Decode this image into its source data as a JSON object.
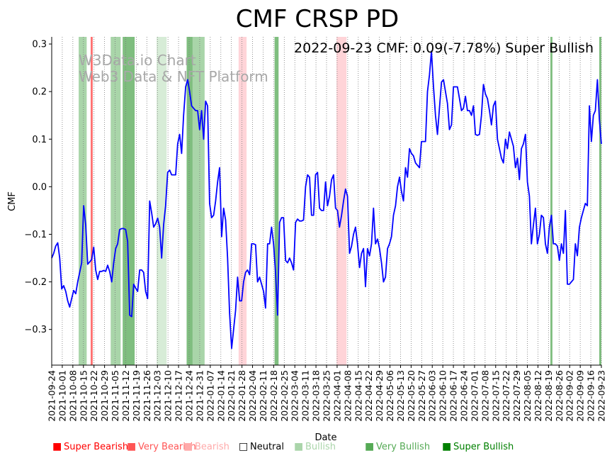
{
  "chart_data": {
    "type": "line",
    "title": "CMF CRSP PD",
    "annotation": "2022-09-23 CMF: 0.09(-7.78%) Super Bullish",
    "watermark": [
      "W3Data.io Chart",
      "Web3 Data & NFT Platform"
    ],
    "xlabel": "Date",
    "ylabel": "CMF",
    "ylim": [
      -0.375,
      0.315
    ],
    "y_ticks": [
      -0.3,
      -0.2,
      -0.1,
      0.0,
      0.1,
      0.2,
      0.3
    ],
    "y_tick_labels": [
      "−0.3",
      "−0.2",
      "−0.1",
      "0.0",
      "0.1",
      "0.2",
      "0.3"
    ],
    "x_start": "2021-09-24",
    "x_end": "2022-09-23",
    "x_tick_labels": [
      "2021-09-24",
      "2021-10-01",
      "2021-10-08",
      "2021-10-15",
      "2021-10-22",
      "2021-10-29",
      "2021-11-05",
      "2021-11-12",
      "2021-11-19",
      "2021-11-26",
      "2021-12-03",
      "2021-12-10",
      "2021-12-17",
      "2021-12-24",
      "2021-12-31",
      "2022-01-07",
      "2022-01-14",
      "2022-01-21",
      "2022-01-28",
      "2022-02-04",
      "2022-02-11",
      "2022-02-18",
      "2022-02-25",
      "2022-03-04",
      "2022-03-11",
      "2022-03-18",
      "2022-03-25",
      "2022-04-01",
      "2022-04-08",
      "2022-04-15",
      "2022-04-22",
      "2022-04-29",
      "2022-05-06",
      "2022-05-13",
      "2022-05-20",
      "2022-05-27",
      "2022-06-03",
      "2022-06-10",
      "2022-06-17",
      "2022-06-24",
      "2022-07-01",
      "2022-07-08",
      "2022-07-15",
      "2022-07-22",
      "2022-07-29",
      "2022-08-05",
      "2022-08-12",
      "2022-08-19",
      "2022-08-26",
      "2022-09-02",
      "2022-09-09",
      "2022-09-16",
      "2022-09-23"
    ],
    "series": [
      {
        "name": "CMF",
        "color": "#0000ff",
        "points": [
          [
            0,
            -0.15
          ],
          [
            1,
            -0.14
          ],
          [
            2,
            -0.125
          ],
          [
            3,
            -0.118
          ],
          [
            4,
            -0.15
          ],
          [
            5,
            -0.215
          ],
          [
            6,
            -0.208
          ],
          [
            7,
            -0.22
          ],
          [
            8,
            -0.24
          ],
          [
            9,
            -0.253
          ],
          [
            10,
            -0.235
          ],
          [
            11,
            -0.218
          ],
          [
            12,
            -0.225
          ],
          [
            13,
            -0.2
          ],
          [
            14,
            -0.18
          ],
          [
            15,
            -0.16
          ],
          [
            16,
            -0.04
          ],
          [
            17,
            -0.08
          ],
          [
            18,
            -0.163
          ],
          [
            19,
            -0.158
          ],
          [
            20,
            -0.153
          ],
          [
            21,
            -0.127
          ],
          [
            22,
            -0.175
          ],
          [
            23,
            -0.195
          ],
          [
            24,
            -0.178
          ],
          [
            25,
            -0.178
          ],
          [
            26,
            -0.176
          ],
          [
            27,
            -0.178
          ],
          [
            28,
            -0.165
          ],
          [
            29,
            -0.178
          ],
          [
            30,
            -0.2
          ],
          [
            31,
            -0.16
          ],
          [
            32,
            -0.13
          ],
          [
            33,
            -0.12
          ],
          [
            34,
            -0.09
          ],
          [
            35,
            -0.088
          ],
          [
            36,
            -0.088
          ],
          [
            37,
            -0.09
          ],
          [
            38,
            -0.115
          ],
          [
            39,
            -0.27
          ],
          [
            40,
            -0.273
          ],
          [
            41,
            -0.205
          ],
          [
            42,
            -0.213
          ],
          [
            43,
            -0.22
          ],
          [
            44,
            -0.175
          ],
          [
            45,
            -0.175
          ],
          [
            46,
            -0.18
          ],
          [
            47,
            -0.22
          ],
          [
            48,
            -0.235
          ],
          [
            49,
            -0.03
          ],
          [
            50,
            -0.055
          ],
          [
            51,
            -0.085
          ],
          [
            52,
            -0.078
          ],
          [
            53,
            -0.066
          ],
          [
            54,
            -0.085
          ],
          [
            55,
            -0.15
          ],
          [
            56,
            -0.08
          ],
          [
            57,
            -0.04
          ],
          [
            58,
            0.03
          ],
          [
            59,
            0.035
          ],
          [
            60,
            0.025
          ],
          [
            61,
            0.025
          ],
          [
            62,
            0.025
          ],
          [
            63,
            0.09
          ],
          [
            64,
            0.11
          ],
          [
            65,
            0.07
          ],
          [
            66,
            0.15
          ],
          [
            67,
            0.21
          ],
          [
            68,
            0.225
          ],
          [
            69,
            0.2
          ],
          [
            70,
            0.17
          ],
          [
            71,
            0.165
          ],
          [
            72,
            0.16
          ],
          [
            73,
            0.16
          ],
          [
            74,
            0.12
          ],
          [
            75,
            0.16
          ],
          [
            76,
            0.1
          ],
          [
            77,
            0.18
          ],
          [
            78,
            0.17
          ],
          [
            79,
            -0.035
          ],
          [
            80,
            -0.065
          ],
          [
            81,
            -0.06
          ],
          [
            82,
            -0.03
          ],
          [
            83,
            0.01
          ],
          [
            84,
            0.04
          ],
          [
            85,
            -0.105
          ],
          [
            86,
            -0.045
          ],
          [
            87,
            -0.07
          ],
          [
            88,
            -0.15
          ],
          [
            89,
            -0.265
          ],
          [
            90,
            -0.34
          ],
          [
            91,
            -0.3
          ],
          [
            92,
            -0.26
          ],
          [
            93,
            -0.19
          ],
          [
            94,
            -0.24
          ],
          [
            95,
            -0.24
          ],
          [
            96,
            -0.2
          ],
          [
            97,
            -0.18
          ],
          [
            98,
            -0.175
          ],
          [
            99,
            -0.185
          ],
          [
            100,
            -0.12
          ],
          [
            101,
            -0.12
          ],
          [
            102,
            -0.122
          ],
          [
            103,
            -0.2
          ],
          [
            104,
            -0.19
          ],
          [
            105,
            -0.205
          ],
          [
            106,
            -0.22
          ],
          [
            107,
            -0.255
          ],
          [
            108,
            -0.12
          ],
          [
            109,
            -0.12
          ],
          [
            110,
            -0.085
          ],
          [
            111,
            -0.12
          ],
          [
            112,
            -0.18
          ],
          [
            113,
            -0.27
          ],
          [
            114,
            -0.075
          ],
          [
            115,
            -0.065
          ],
          [
            116,
            -0.065
          ],
          [
            117,
            -0.155
          ],
          [
            118,
            -0.16
          ],
          [
            119,
            -0.15
          ],
          [
            120,
            -0.16
          ],
          [
            121,
            -0.175
          ],
          [
            122,
            -0.075
          ],
          [
            123,
            -0.068
          ],
          [
            124,
            -0.072
          ],
          [
            125,
            -0.072
          ],
          [
            126,
            -0.07
          ],
          [
            127,
            0.0
          ],
          [
            128,
            0.025
          ],
          [
            129,
            0.02
          ],
          [
            130,
            -0.06
          ],
          [
            131,
            -0.06
          ],
          [
            132,
            0.025
          ],
          [
            133,
            0.03
          ],
          [
            134,
            -0.045
          ],
          [
            135,
            -0.05
          ],
          [
            136,
            -0.05
          ],
          [
            137,
            0.01
          ],
          [
            138,
            -0.04
          ],
          [
            139,
            -0.02
          ],
          [
            140,
            0.015
          ],
          [
            141,
            0.025
          ],
          [
            142,
            -0.045
          ],
          [
            143,
            -0.05
          ],
          [
            144,
            -0.085
          ],
          [
            145,
            -0.06
          ],
          [
            146,
            -0.03
          ],
          [
            147,
            -0.005
          ],
          [
            148,
            -0.02
          ],
          [
            149,
            -0.14
          ],
          [
            150,
            -0.125
          ],
          [
            151,
            -0.1
          ],
          [
            152,
            -0.085
          ],
          [
            153,
            -0.12
          ],
          [
            154,
            -0.17
          ],
          [
            155,
            -0.14
          ],
          [
            156,
            -0.13
          ],
          [
            157,
            -0.21
          ],
          [
            158,
            -0.13
          ],
          [
            159,
            -0.145
          ],
          [
            160,
            -0.12
          ],
          [
            161,
            -0.045
          ],
          [
            162,
            -0.12
          ],
          [
            163,
            -0.11
          ],
          [
            164,
            -0.13
          ],
          [
            165,
            -0.16
          ],
          [
            166,
            -0.2
          ],
          [
            167,
            -0.19
          ],
          [
            168,
            -0.13
          ],
          [
            169,
            -0.12
          ],
          [
            170,
            -0.105
          ],
          [
            171,
            -0.06
          ],
          [
            172,
            -0.04
          ],
          [
            173,
            0.0
          ],
          [
            174,
            0.02
          ],
          [
            175,
            -0.01
          ],
          [
            176,
            -0.03
          ],
          [
            177,
            0.04
          ],
          [
            178,
            0.02
          ],
          [
            179,
            0.08
          ],
          [
            180,
            0.07
          ],
          [
            181,
            0.065
          ],
          [
            182,
            0.05
          ],
          [
            183,
            0.045
          ],
          [
            184,
            0.04
          ],
          [
            185,
            0.095
          ],
          [
            186,
            0.095
          ],
          [
            187,
            0.095
          ],
          [
            188,
            0.2
          ],
          [
            189,
            0.235
          ],
          [
            190,
            0.285
          ],
          [
            191,
            0.21
          ],
          [
            192,
            0.15
          ],
          [
            193,
            0.11
          ],
          [
            194,
            0.165
          ],
          [
            195,
            0.22
          ],
          [
            196,
            0.225
          ],
          [
            197,
            0.2
          ],
          [
            198,
            0.175
          ],
          [
            199,
            0.12
          ],
          [
            200,
            0.13
          ],
          [
            201,
            0.21
          ],
          [
            202,
            0.21
          ],
          [
            203,
            0.21
          ],
          [
            204,
            0.185
          ],
          [
            205,
            0.16
          ],
          [
            206,
            0.165
          ],
          [
            207,
            0.19
          ],
          [
            208,
            0.16
          ],
          [
            209,
            0.16
          ],
          [
            210,
            0.15
          ],
          [
            211,
            0.17
          ],
          [
            212,
            0.11
          ],
          [
            213,
            0.108
          ],
          [
            214,
            0.11
          ],
          [
            215,
            0.15
          ],
          [
            216,
            0.215
          ],
          [
            217,
            0.195
          ],
          [
            218,
            0.185
          ],
          [
            219,
            0.16
          ],
          [
            220,
            0.13
          ],
          [
            221,
            0.17
          ],
          [
            222,
            0.18
          ],
          [
            223,
            0.1
          ],
          [
            224,
            0.08
          ],
          [
            225,
            0.06
          ],
          [
            226,
            0.05
          ],
          [
            227,
            0.1
          ],
          [
            228,
            0.08
          ],
          [
            229,
            0.115
          ],
          [
            230,
            0.1
          ],
          [
            231,
            0.085
          ],
          [
            232,
            0.04
          ],
          [
            233,
            0.06
          ],
          [
            234,
            0.015
          ],
          [
            235,
            0.08
          ],
          [
            236,
            0.09
          ],
          [
            237,
            0.11
          ],
          [
            238,
            0.01
          ],
          [
            239,
            -0.02
          ],
          [
            240,
            -0.12
          ],
          [
            241,
            -0.08
          ],
          [
            242,
            -0.045
          ],
          [
            243,
            -0.12
          ],
          [
            244,
            -0.1
          ],
          [
            245,
            -0.06
          ],
          [
            246,
            -0.065
          ],
          [
            247,
            -0.12
          ],
          [
            248,
            -0.14
          ],
          [
            249,
            -0.085
          ],
          [
            250,
            -0.06
          ],
          [
            251,
            -0.12
          ],
          [
            252,
            -0.12
          ],
          [
            253,
            -0.125
          ],
          [
            254,
            -0.155
          ],
          [
            255,
            -0.12
          ],
          [
            256,
            -0.14
          ],
          [
            257,
            -0.05
          ],
          [
            258,
            -0.205
          ],
          [
            259,
            -0.205
          ],
          [
            260,
            -0.2
          ],
          [
            261,
            -0.195
          ],
          [
            262,
            -0.12
          ],
          [
            263,
            -0.145
          ],
          [
            264,
            -0.085
          ],
          [
            265,
            -0.065
          ],
          [
            266,
            -0.05
          ],
          [
            267,
            -0.035
          ],
          [
            268,
            -0.04
          ],
          [
            269,
            0.17
          ],
          [
            270,
            0.095
          ],
          [
            271,
            0.15
          ],
          [
            272,
            0.16
          ],
          [
            273,
            0.225
          ],
          [
            274,
            0.14
          ],
          [
            275,
            0.09
          ]
        ]
      }
    ],
    "signal_bands": [
      {
        "start": 13.5,
        "end": 17.5,
        "class": "Bullish"
      },
      {
        "start": 19.5,
        "end": 20.5,
        "class": "Very Bearish"
      },
      {
        "start": 29.5,
        "end": 34.5,
        "class": "Bullish"
      },
      {
        "start": 35.5,
        "end": 41.5,
        "class": "Very Bullish"
      },
      {
        "start": 52.5,
        "end": 57.5,
        "class": "Neutral-Bullish"
      },
      {
        "start": 67.5,
        "end": 70.5,
        "class": "Very Bullish"
      },
      {
        "start": 70.5,
        "end": 76.5,
        "class": "Bullish"
      },
      {
        "start": 93.5,
        "end": 97.5,
        "class": "Bearish"
      },
      {
        "start": 111.5,
        "end": 113.5,
        "class": "Very Bullish"
      },
      {
        "start": 142.5,
        "end": 147.5,
        "class": "Bearish"
      },
      {
        "start": 249.5,
        "end": 250.5,
        "class": "Very Bullish"
      }
    ],
    "legend": [
      {
        "label": "Super Bearish",
        "color": "#ff0000"
      },
      {
        "label": "Very Bearish",
        "color": "#ff5555"
      },
      {
        "label": "Bearish",
        "color": "#ffaaaa"
      },
      {
        "label": "Neutral",
        "color": "#000000"
      },
      {
        "label": "Bullish",
        "color": "#aad5aa"
      },
      {
        "label": "Very Bullish",
        "color": "#55aa55"
      },
      {
        "label": "Super Bullish",
        "color": "#008000"
      }
    ]
  }
}
